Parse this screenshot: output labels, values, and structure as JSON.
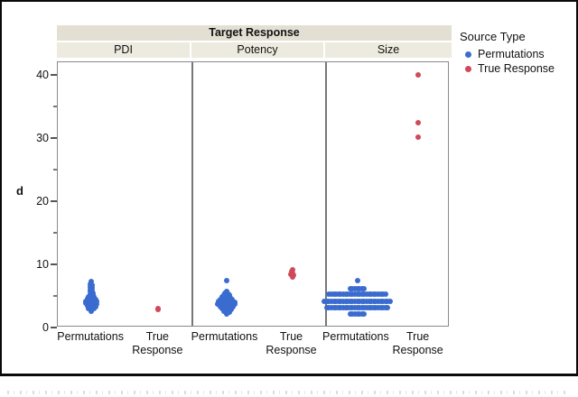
{
  "figure": {
    "header": "Target Response",
    "ylabel": "d",
    "caption_note": ""
  },
  "legend": {
    "title": "Source Type",
    "entries": [
      {
        "label": "Permutations",
        "color": "#3a6ccf"
      },
      {
        "label": "True Response",
        "color": "#d0495a"
      }
    ]
  },
  "chart_data": {
    "type": "scatter",
    "subtype": "jittered strip plot with 3 facets",
    "facet_header": "Target Response",
    "ylabel": "d",
    "ylim": [
      0,
      42
    ],
    "yticks_major": [
      0,
      10,
      20,
      30,
      40
    ],
    "yticks_minor": [
      5,
      15,
      25,
      35
    ],
    "grid": false,
    "legend": {
      "title": "Source Type",
      "position": "right",
      "entries": [
        "Permutations",
        "True Response"
      ]
    },
    "x_categories": [
      {
        "label": "Permutations",
        "lines": [
          "Permutations"
        ]
      },
      {
        "label": "True Response",
        "lines": [
          "True",
          "Response"
        ]
      }
    ],
    "colors": {
      "Permutations": "#3a6ccf",
      "True Response": "#d0495a"
    },
    "panels": [
      {
        "name": "PDI",
        "groups": [
          {
            "source": "Permutations",
            "color": "#3a6ccf",
            "summary": "cluster d ≈ 2.6–7.3, bulk 3–5",
            "points": [
              [
                0,
                7.3
              ],
              [
                -1,
                6.9
              ],
              [
                1,
                6.7
              ],
              [
                -1,
                6.45
              ],
              [
                1,
                6.25
              ],
              [
                -1,
                6.05
              ],
              [
                1,
                5.85
              ],
              [
                -1.5,
                5.65
              ],
              [
                1.5,
                5.5
              ],
              [
                -1.5,
                5.35
              ],
              [
                1.5,
                5.2
              ],
              [
                0,
                5.05
              ],
              [
                -3,
                4.9
              ],
              [
                3,
                4.8
              ],
              [
                0,
                4.7
              ],
              [
                -4.5,
                4.55
              ],
              [
                4.5,
                4.45
              ],
              [
                -1.8,
                4.4
              ],
              [
                1.8,
                4.3
              ],
              [
                -6,
                4.2
              ],
              [
                6,
                4.1
              ],
              [
                -2.5,
                4.05
              ],
              [
                2.5,
                3.95
              ],
              [
                0,
                3.9
              ],
              [
                -6,
                3.8
              ],
              [
                6,
                3.7
              ],
              [
                -2.8,
                3.65
              ],
              [
                2.8,
                3.6
              ],
              [
                0,
                3.5
              ],
              [
                -4.5,
                3.4
              ],
              [
                4.5,
                3.3
              ],
              [
                -1.8,
                3.25
              ],
              [
                1.8,
                3.15
              ],
              [
                -2.8,
                3.0
              ],
              [
                2.8,
                2.95
              ],
              [
                0,
                2.8
              ],
              [
                0,
                2.62
              ]
            ]
          },
          {
            "source": "True Response",
            "color": "#d0495a",
            "summary": "d ≈ 3.0",
            "points": [
              [
                0,
                3.05
              ],
              [
                0.4,
                2.88
              ]
            ]
          }
        ]
      },
      {
        "name": "Potency",
        "groups": [
          {
            "source": "Permutations",
            "color": "#3a6ccf",
            "summary": "cluster d ≈ 2.1–5.8 plus outlier 7.4",
            "points": [
              [
                0,
                7.4
              ],
              [
                0,
                5.75
              ],
              [
                -1.5,
                5.5
              ],
              [
                1.5,
                5.4
              ],
              [
                -3,
                5.2
              ],
              [
                3,
                5.1
              ],
              [
                0,
                5.0
              ],
              [
                -4.5,
                4.85
              ],
              [
                4.5,
                4.75
              ],
              [
                -1.5,
                4.7
              ],
              [
                1.5,
                4.6
              ],
              [
                -6.5,
                4.5
              ],
              [
                6.5,
                4.4
              ],
              [
                -3,
                4.35
              ],
              [
                3,
                4.3
              ],
              [
                0,
                4.2
              ],
              [
                -9,
                4.1
              ],
              [
                9,
                4.05
              ],
              [
                -5,
                4.0
              ],
              [
                5,
                3.95
              ],
              [
                -1.8,
                3.9
              ],
              [
                1.8,
                3.85
              ],
              [
                -9.5,
                3.75
              ],
              [
                9.5,
                3.7
              ],
              [
                -6,
                3.65
              ],
              [
                6,
                3.6
              ],
              [
                -3,
                3.55
              ],
              [
                3,
                3.5
              ],
              [
                0,
                3.45
              ],
              [
                -7,
                3.35
              ],
              [
                7,
                3.3
              ],
              [
                -4,
                3.25
              ],
              [
                4,
                3.2
              ],
              [
                -1.5,
                3.1
              ],
              [
                1.5,
                3.05
              ],
              [
                -5,
                2.95
              ],
              [
                5,
                2.9
              ],
              [
                -2,
                2.85
              ],
              [
                2,
                2.75
              ],
              [
                -3,
                2.6
              ],
              [
                3,
                2.5
              ],
              [
                0,
                2.35
              ],
              [
                0,
                2.1
              ]
            ]
          },
          {
            "source": "True Response",
            "color": "#d0495a",
            "summary": "d ≈ 8–9.2",
            "points": [
              [
                0,
                9.15
              ],
              [
                -0.6,
                8.8
              ],
              [
                0.6,
                8.6
              ],
              [
                -1.2,
                8.4
              ],
              [
                1.2,
                8.3
              ],
              [
                0,
                8.15
              ],
              [
                0,
                8.0
              ]
            ]
          }
        ]
      },
      {
        "name": "Size",
        "groups": [
          {
            "source": "Permutations",
            "color": "#3a6ccf",
            "summary": "stacked rows at d ≈ 2.1, 3.2, 4.2, 5.3, 6.2, 7.5",
            "points": [
              [
                0,
                7.5
              ],
              [
                -7.8,
                6.2
              ],
              [
                -5.2,
                6.2
              ],
              [
                -2.6,
                6.2
              ],
              [
                0,
                6.2
              ],
              [
                2.6,
                6.2
              ],
              [
                5.2,
                6.2
              ],
              [
                7.8,
                6.2
              ],
              [
                -31.2,
                5.3
              ],
              [
                -28.6,
                5.3
              ],
              [
                -26,
                5.3
              ],
              [
                -23.4,
                5.3
              ],
              [
                -20.8,
                5.3
              ],
              [
                -18.2,
                5.3
              ],
              [
                -15.6,
                5.3
              ],
              [
                -13,
                5.3
              ],
              [
                -10.4,
                5.3
              ],
              [
                -7.8,
                5.3
              ],
              [
                -5.2,
                5.3
              ],
              [
                -2.6,
                5.3
              ],
              [
                0,
                5.3
              ],
              [
                2.6,
                5.3
              ],
              [
                5.2,
                5.3
              ],
              [
                7.8,
                5.3
              ],
              [
                10.4,
                5.3
              ],
              [
                13,
                5.3
              ],
              [
                15.6,
                5.3
              ],
              [
                18.2,
                5.3
              ],
              [
                20.8,
                5.3
              ],
              [
                23.4,
                5.3
              ],
              [
                26,
                5.3
              ],
              [
                28.6,
                5.3
              ],
              [
                31.2,
                5.3
              ],
              [
                -36.4,
                4.2
              ],
              [
                -33.8,
                4.2
              ],
              [
                -31.2,
                4.2
              ],
              [
                -28.6,
                4.2
              ],
              [
                -26,
                4.2
              ],
              [
                -23.4,
                4.2
              ],
              [
                -20.8,
                4.2
              ],
              [
                -18.2,
                4.2
              ],
              [
                -15.6,
                4.2
              ],
              [
                -13,
                4.2
              ],
              [
                -10.4,
                4.2
              ],
              [
                -7.8,
                4.2
              ],
              [
                -5.2,
                4.2
              ],
              [
                -2.6,
                4.2
              ],
              [
                0,
                4.2
              ],
              [
                2.6,
                4.2
              ],
              [
                5.2,
                4.2
              ],
              [
                7.8,
                4.2
              ],
              [
                10.4,
                4.2
              ],
              [
                13,
                4.2
              ],
              [
                15.6,
                4.2
              ],
              [
                18.2,
                4.2
              ],
              [
                20.8,
                4.2
              ],
              [
                23.4,
                4.2
              ],
              [
                26,
                4.2
              ],
              [
                28.6,
                4.2
              ],
              [
                31.2,
                4.2
              ],
              [
                33.8,
                4.2
              ],
              [
                36.4,
                4.2
              ],
              [
                -33.8,
                3.2
              ],
              [
                -31.2,
                3.2
              ],
              [
                -28.6,
                3.2
              ],
              [
                -26,
                3.2
              ],
              [
                -23.4,
                3.2
              ],
              [
                -20.8,
                3.2
              ],
              [
                -18.2,
                3.2
              ],
              [
                -15.6,
                3.2
              ],
              [
                -13,
                3.2
              ],
              [
                -10.4,
                3.2
              ],
              [
                -7.8,
                3.2
              ],
              [
                -5.2,
                3.2
              ],
              [
                -2.6,
                3.2
              ],
              [
                0,
                3.2
              ],
              [
                2.6,
                3.2
              ],
              [
                5.2,
                3.2
              ],
              [
                7.8,
                3.2
              ],
              [
                10.4,
                3.2
              ],
              [
                13,
                3.2
              ],
              [
                15.6,
                3.2
              ],
              [
                18.2,
                3.2
              ],
              [
                20.8,
                3.2
              ],
              [
                23.4,
                3.2
              ],
              [
                26,
                3.2
              ],
              [
                28.6,
                3.2
              ],
              [
                31.2,
                3.2
              ],
              [
                33.8,
                3.2
              ],
              [
                -7.8,
                2.1
              ],
              [
                -5.2,
                2.1
              ],
              [
                -2.6,
                2.1
              ],
              [
                0,
                2.1
              ],
              [
                2.6,
                2.1
              ],
              [
                5.2,
                2.1
              ],
              [
                7.8,
                2.1
              ]
            ]
          },
          {
            "source": "True Response",
            "color": "#d0495a",
            "summary": "d ≈ 30.1, 32.4, 40.0",
            "points": [
              [
                0,
                40.0
              ],
              [
                0,
                32.4
              ],
              [
                0,
                30.1
              ]
            ]
          }
        ]
      }
    ]
  }
}
